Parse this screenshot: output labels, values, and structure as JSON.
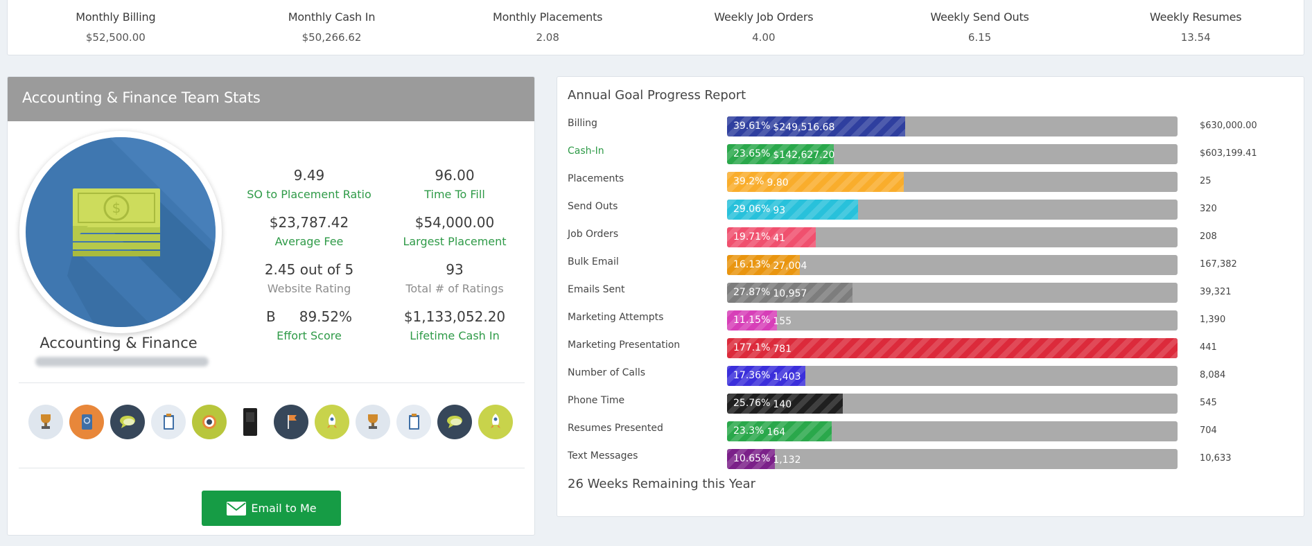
{
  "kpis": [
    {
      "label": "Monthly Billing",
      "value": "$52,500.00"
    },
    {
      "label": "Monthly Cash In",
      "value": "$50,266.62"
    },
    {
      "label": "Monthly Placements",
      "value": "2.08"
    },
    {
      "label": "Weekly Job Orders",
      "value": "4.00"
    },
    {
      "label": "Weekly Send Outs",
      "value": "6.15"
    },
    {
      "label": "Weekly Resumes",
      "value": "13.54"
    }
  ],
  "team": {
    "header": "Accounting & Finance Team Stats",
    "name": "Accounting & Finance",
    "stats": {
      "so_ratio": {
        "value": "9.49",
        "label": "SO to Placement Ratio"
      },
      "time_to_fill": {
        "value": "96.00",
        "label": "Time To Fill"
      },
      "avg_fee": {
        "value": "$23,787.42",
        "label": "Average Fee"
      },
      "largest_placement": {
        "value": "$54,000.00",
        "label": "Largest Placement"
      },
      "website_rating": {
        "value": "2.45 out of 5",
        "label": "Website Rating"
      },
      "total_ratings": {
        "value": "93",
        "label": "Total # of Ratings"
      },
      "effort_grade": "B",
      "effort_score": {
        "value": "89.52%",
        "label": "Effort Score"
      },
      "lifetime_cash": {
        "value": "$1,133,052.20",
        "label": "Lifetime Cash In"
      }
    },
    "badges": [
      "trophy-icon",
      "passport-icon",
      "chat-icon",
      "clipboard-icon",
      "target-icon",
      "phone-booth-icon",
      "flag-icon",
      "rocket-icon",
      "trophy-icon",
      "clipboard-icon",
      "chat-icon",
      "rocket-icon"
    ],
    "email_button": "Email to Me"
  },
  "goals": {
    "title": "Annual Goal Progress Report",
    "rows": [
      {
        "label": "Billing",
        "percent_text": "39.61%",
        "progress": 39.61,
        "amount": "$249,516.68",
        "target": "$630,000.00",
        "color": "#2f3f9f",
        "label_green": false
      },
      {
        "label": "Cash-In",
        "percent_text": "23.65%",
        "progress": 23.65,
        "amount": "$142,627.20",
        "target": "$603,199.41",
        "color": "#2aa84b",
        "label_green": true
      },
      {
        "label": "Placements",
        "percent_text": "39.2%",
        "progress": 39.2,
        "amount": "9.80",
        "target": "25",
        "color": "#f9ad2c",
        "label_green": false
      },
      {
        "label": "Send Outs",
        "percent_text": "29.06%",
        "progress": 29.06,
        "amount": "93",
        "target": "320",
        "color": "#28c1db",
        "label_green": false
      },
      {
        "label": "Job Orders",
        "percent_text": "19.71%",
        "progress": 19.71,
        "amount": "41",
        "target": "208",
        "color": "#f0506e",
        "label_green": false
      },
      {
        "label": "Bulk Email",
        "percent_text": "16.13%",
        "progress": 16.13,
        "amount": "27,004",
        "target": "167,382",
        "color": "#e9950f",
        "label_green": false
      },
      {
        "label": "Emails Sent",
        "percent_text": "27.87%",
        "progress": 27.87,
        "amount": "10,957",
        "target": "39,321",
        "color": "#7d7d7d",
        "label_green": false
      },
      {
        "label": "Marketing Attempts",
        "percent_text": "11.15%",
        "progress": 11.15,
        "amount": "155",
        "target": "1,390",
        "color": "#d73fb8",
        "label_green": false
      },
      {
        "label": "Marketing Presentation",
        "percent_text": "177.1%",
        "progress": 100,
        "amount": "781",
        "target": "441",
        "color": "#dc2a3b",
        "label_green": false
      },
      {
        "label": "Number of Calls",
        "percent_text": "17.36%",
        "progress": 17.36,
        "amount": "1,403",
        "target": "8,084",
        "color": "#3b2fdb",
        "label_green": false
      },
      {
        "label": "Phone Time",
        "percent_text": "25.76%",
        "progress": 25.76,
        "amount": "140",
        "target": "545",
        "color": "#1f1f1f",
        "label_green": false
      },
      {
        "label": "Resumes Presented",
        "percent_text": "23.3%",
        "progress": 23.3,
        "amount": "164",
        "target": "704",
        "color": "#2aa84b",
        "label_green": false
      },
      {
        "label": "Text Messages",
        "percent_text": "10.65%",
        "progress": 10.65,
        "amount": "1,132",
        "target": "10,633",
        "color": "#7b2089",
        "label_green": false
      }
    ],
    "weeks_remaining": "26 Weeks Remaining this Year"
  }
}
